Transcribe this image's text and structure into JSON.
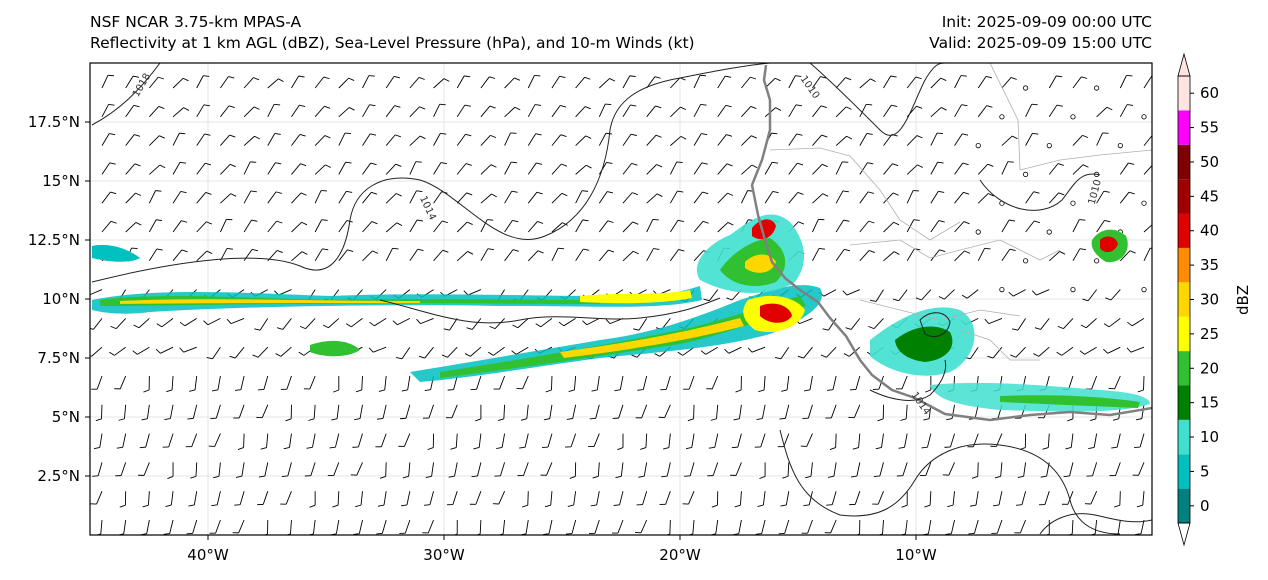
{
  "header": {
    "title": "NSF NCAR 3.75-km MPAS-A",
    "subtitle": "Reflectivity at 1 km AGL (dBZ), Sea-Level Pressure (hPa), and 10-m Winds (kt)",
    "init": "Init: 2025-09-09 00:00 UTC",
    "valid": "Valid: 2025-09-09 15:00 UTC"
  },
  "map": {
    "lon_range": [
      -45,
      0
    ],
    "lat_range": [
      0,
      20
    ],
    "lon_ticks": [
      {
        "value": -40,
        "label": "40°W"
      },
      {
        "value": -30,
        "label": "30°W"
      },
      {
        "value": -20,
        "label": "20°W"
      },
      {
        "value": -10,
        "label": "10°W"
      }
    ],
    "lat_ticks": [
      {
        "value": 2.5,
        "label": "2.5°N"
      },
      {
        "value": 5,
        "label": "5°N"
      },
      {
        "value": 7.5,
        "label": "7.5°N"
      },
      {
        "value": 10,
        "label": "10°N"
      },
      {
        "value": 12.5,
        "label": "12.5°N"
      },
      {
        "value": 15,
        "label": "15°N"
      },
      {
        "value": 17.5,
        "label": "17.5°N"
      }
    ],
    "isobar_labels": [
      {
        "text": "1018",
        "lon": -42.7,
        "lat": 19.0,
        "rot": -60
      },
      {
        "text": "1014",
        "lon": -30.8,
        "lat": 13.8,
        "rot": 65
      },
      {
        "text": "1010",
        "lon": -14.6,
        "lat": 18.9,
        "rot": 55
      },
      {
        "text": "1010",
        "lon": -2.3,
        "lat": 14.5,
        "rot": -75
      },
      {
        "text": "1014",
        "lon": -9.9,
        "lat": 5.5,
        "rot": 55
      }
    ]
  },
  "colorbar": {
    "label": "dBZ",
    "levels": [
      0,
      5,
      10,
      15,
      20,
      25,
      30,
      35,
      40,
      45,
      50,
      55,
      60
    ],
    "tick_labels": [
      "0",
      "5",
      "10",
      "15",
      "20",
      "25",
      "30",
      "35",
      "40",
      "45",
      "50",
      "55",
      "60"
    ],
    "colors": [
      "#008080",
      "#00c0c0",
      "#40e0d0",
      "#008000",
      "#30c030",
      "#ffff00",
      "#ffd700",
      "#ff8c00",
      "#e00000",
      "#a00000",
      "#800000",
      "#ff00ff",
      "#ffe4e1"
    ]
  }
}
